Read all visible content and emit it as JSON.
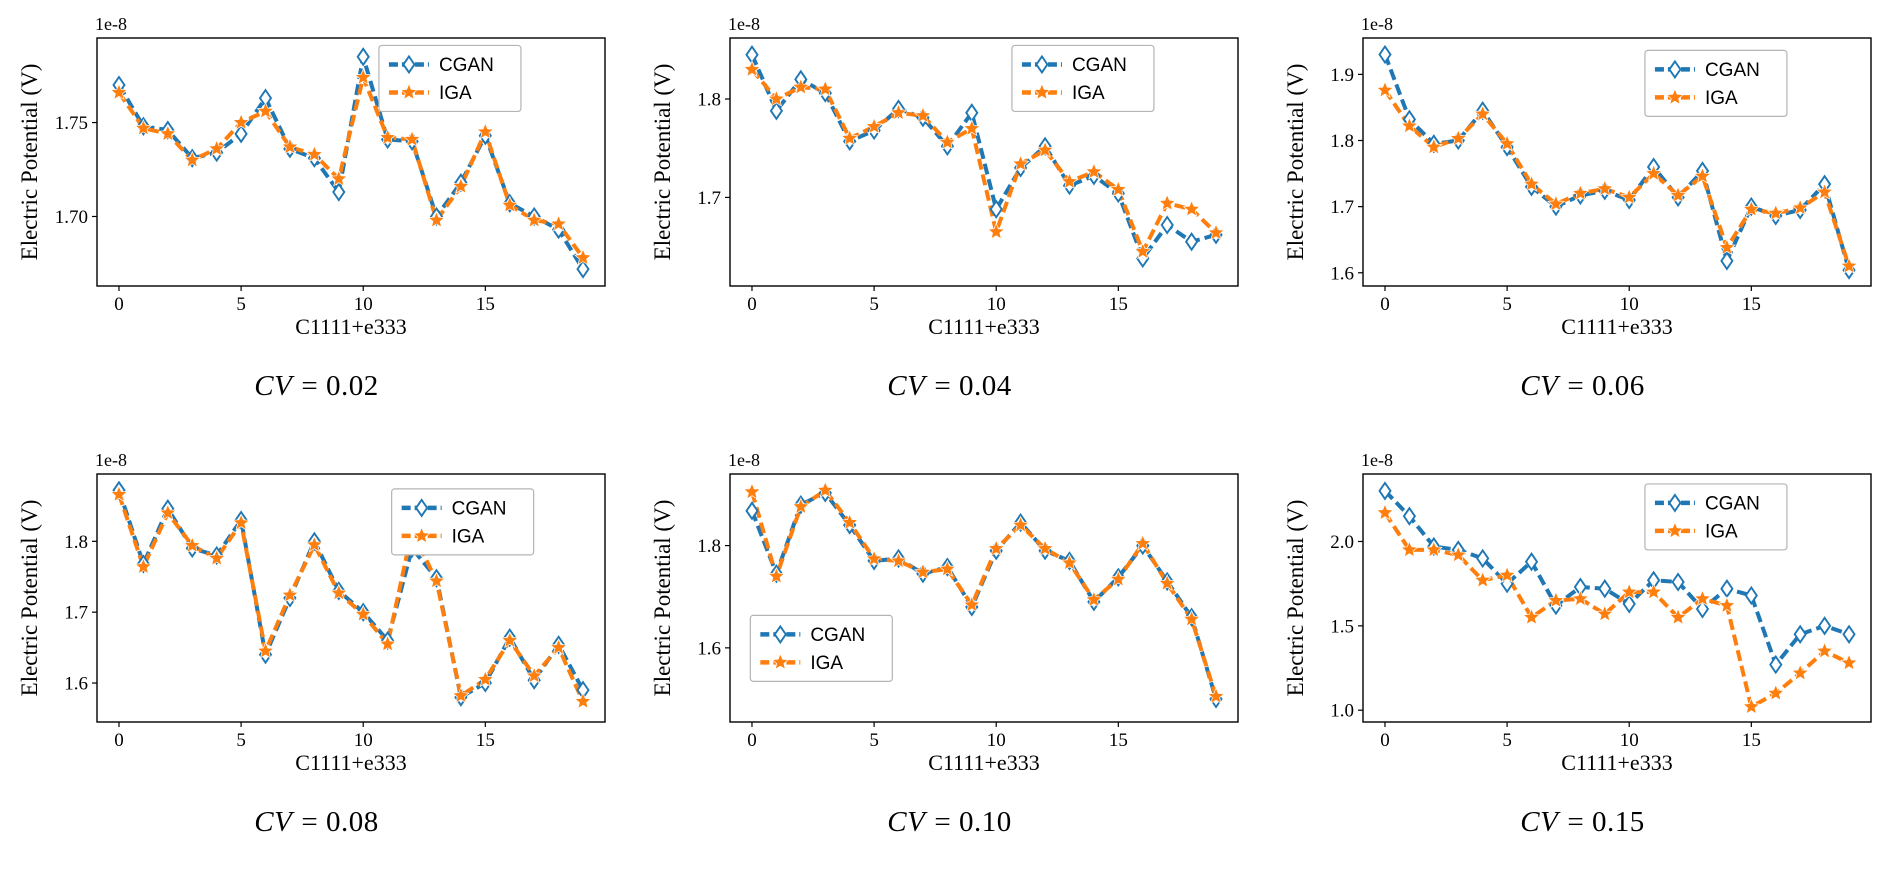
{
  "colors": {
    "cgan_blue": "#1f77b4",
    "iga_orange": "#ff7f0e"
  },
  "chart_data": [
    {
      "type": "line",
      "caption_var": "CV",
      "caption_eq": "= 0.02",
      "ylabel": "Electric Potential (V)",
      "xlabel": "C1111+e333",
      "offset_label": "1e-8",
      "xlim": [
        -0.9,
        19.9
      ],
      "ylim": [
        1.663,
        1.795
      ],
      "xticks": [
        {
          "value": 0,
          "label": "0"
        },
        {
          "value": 5,
          "label": "5"
        },
        {
          "value": 10,
          "label": "10"
        },
        {
          "value": 15,
          "label": "15"
        }
      ],
      "yticks": [
        {
          "value": 1.7,
          "label": "1.70"
        },
        {
          "value": 1.75,
          "label": "1.75"
        }
      ],
      "legend": {
        "x": 0.555,
        "y": 0.03,
        "entries": [
          "CGAN",
          "IGA"
        ]
      },
      "series": [
        {
          "name": "CGAN",
          "color": "#1f77b4",
          "marker": "diamond",
          "values": [
            1.77,
            1.748,
            1.746,
            1.731,
            1.734,
            1.744,
            1.763,
            1.736,
            1.731,
            1.713,
            1.785,
            1.741,
            1.74,
            1.7,
            1.718,
            1.743,
            1.707,
            1.7,
            1.693,
            1.672
          ]
        },
        {
          "name": "IGA",
          "color": "#ff7f0e",
          "marker": "star",
          "values": [
            1.766,
            1.747,
            1.744,
            1.73,
            1.736,
            1.75,
            1.756,
            1.737,
            1.733,
            1.72,
            1.774,
            1.742,
            1.741,
            1.698,
            1.716,
            1.745,
            1.706,
            1.698,
            1.696,
            1.678
          ]
        }
      ]
    },
    {
      "type": "line",
      "caption_var": "CV",
      "caption_eq": "= 0.04",
      "ylabel": "Electric Potential (V)",
      "xlabel": "C1111+e333",
      "offset_label": "1e-8",
      "xlim": [
        -0.9,
        19.9
      ],
      "ylim": [
        1.61,
        1.862
      ],
      "xticks": [
        {
          "value": 0,
          "label": "0"
        },
        {
          "value": 5,
          "label": "5"
        },
        {
          "value": 10,
          "label": "10"
        },
        {
          "value": 15,
          "label": "15"
        }
      ],
      "yticks": [
        {
          "value": 1.7,
          "label": "1.7"
        },
        {
          "value": 1.8,
          "label": "1.8"
        }
      ],
      "legend": {
        "x": 0.555,
        "y": 0.03,
        "entries": [
          "CGAN",
          "IGA"
        ]
      },
      "series": [
        {
          "name": "CGAN",
          "color": "#1f77b4",
          "marker": "diamond",
          "values": [
            1.845,
            1.788,
            1.82,
            1.806,
            1.757,
            1.768,
            1.79,
            1.781,
            1.752,
            1.786,
            1.688,
            1.73,
            1.752,
            1.712,
            1.722,
            1.704,
            1.638,
            1.672,
            1.655,
            1.662
          ]
        },
        {
          "name": "IGA",
          "color": "#ff7f0e",
          "marker": "star",
          "values": [
            1.83,
            1.8,
            1.812,
            1.81,
            1.76,
            1.772,
            1.786,
            1.783,
            1.756,
            1.77,
            1.665,
            1.734,
            1.748,
            1.716,
            1.726,
            1.708,
            1.645,
            1.694,
            1.688,
            1.664
          ]
        }
      ]
    },
    {
      "type": "line",
      "caption_var": "CV",
      "caption_eq": "= 0.06",
      "ylabel": "Electric Potential (V)",
      "xlabel": "C1111+e333",
      "offset_label": "1e-8",
      "xlim": [
        -0.9,
        19.9
      ],
      "ylim": [
        1.58,
        1.955
      ],
      "xticks": [
        {
          "value": 0,
          "label": "0"
        },
        {
          "value": 5,
          "label": "5"
        },
        {
          "value": 10,
          "label": "10"
        },
        {
          "value": 15,
          "label": "15"
        }
      ],
      "yticks": [
        {
          "value": 1.6,
          "label": "1.6"
        },
        {
          "value": 1.7,
          "label": "1.7"
        },
        {
          "value": 1.8,
          "label": "1.8"
        },
        {
          "value": 1.9,
          "label": "1.9"
        }
      ],
      "legend": {
        "x": 0.555,
        "y": 0.05,
        "entries": [
          "CGAN",
          "IGA"
        ]
      },
      "series": [
        {
          "name": "CGAN",
          "color": "#1f77b4",
          "marker": "diamond",
          "values": [
            1.93,
            1.832,
            1.795,
            1.8,
            1.845,
            1.79,
            1.73,
            1.7,
            1.717,
            1.724,
            1.71,
            1.76,
            1.714,
            1.754,
            1.618,
            1.7,
            1.686,
            1.695,
            1.734,
            1.604
          ]
        },
        {
          "name": "IGA",
          "color": "#ff7f0e",
          "marker": "star",
          "values": [
            1.876,
            1.822,
            1.79,
            1.803,
            1.84,
            1.795,
            1.734,
            1.704,
            1.72,
            1.727,
            1.714,
            1.75,
            1.717,
            1.746,
            1.638,
            1.696,
            1.69,
            1.698,
            1.722,
            1.61
          ]
        }
      ]
    },
    {
      "type": "line",
      "caption_var": "CV",
      "caption_eq": "= 0.08",
      "ylabel": "Electric Potential (V)",
      "xlabel": "C1111+e333",
      "offset_label": "1e-8",
      "xlim": [
        -0.9,
        19.9
      ],
      "ylim": [
        1.545,
        1.895
      ],
      "xticks": [
        {
          "value": 0,
          "label": "0"
        },
        {
          "value": 5,
          "label": "5"
        },
        {
          "value": 10,
          "label": "10"
        },
        {
          "value": 15,
          "label": "15"
        }
      ],
      "yticks": [
        {
          "value": 1.6,
          "label": "1.6"
        },
        {
          "value": 1.7,
          "label": "1.7"
        },
        {
          "value": 1.8,
          "label": "1.8"
        }
      ],
      "legend": {
        "x": 0.58,
        "y": 0.06,
        "entries": [
          "CGAN",
          "IGA"
        ]
      },
      "series": [
        {
          "name": "CGAN",
          "color": "#1f77b4",
          "marker": "diamond",
          "values": [
            1.872,
            1.768,
            1.846,
            1.79,
            1.78,
            1.83,
            1.64,
            1.72,
            1.8,
            1.73,
            1.7,
            1.66,
            1.79,
            1.748,
            1.58,
            1.6,
            1.664,
            1.604,
            1.654,
            1.59
          ]
        },
        {
          "name": "IGA",
          "color": "#ff7f0e",
          "marker": "star",
          "values": [
            1.866,
            1.764,
            1.84,
            1.794,
            1.776,
            1.826,
            1.645,
            1.724,
            1.795,
            1.727,
            1.697,
            1.655,
            1.815,
            1.744,
            1.582,
            1.605,
            1.66,
            1.61,
            1.65,
            1.574
          ]
        }
      ]
    },
    {
      "type": "line",
      "caption_var": "CV",
      "caption_eq": "= 0.10",
      "ylabel": "Electric Potential (V)",
      "xlabel": "C1111+e333",
      "offset_label": "1e-8",
      "xlim": [
        -0.9,
        19.9
      ],
      "ylim": [
        1.455,
        1.94
      ],
      "xticks": [
        {
          "value": 0,
          "label": "0"
        },
        {
          "value": 5,
          "label": "5"
        },
        {
          "value": 10,
          "label": "10"
        },
        {
          "value": 15,
          "label": "15"
        }
      ],
      "yticks": [
        {
          "value": 1.6,
          "label": "1.6"
        },
        {
          "value": 1.8,
          "label": "1.8"
        }
      ],
      "legend": {
        "x": 0.04,
        "y": 0.57,
        "entries": [
          "CGAN",
          "IGA"
        ]
      },
      "series": [
        {
          "name": "CGAN",
          "color": "#1f77b4",
          "marker": "diamond",
          "values": [
            1.868,
            1.745,
            1.88,
            1.903,
            1.84,
            1.77,
            1.775,
            1.745,
            1.758,
            1.68,
            1.79,
            1.845,
            1.79,
            1.77,
            1.69,
            1.738,
            1.8,
            1.73,
            1.66,
            1.5
          ]
        },
        {
          "name": "IGA",
          "color": "#ff7f0e",
          "marker": "star",
          "values": [
            1.905,
            1.74,
            1.876,
            1.908,
            1.845,
            1.774,
            1.77,
            1.748,
            1.754,
            1.684,
            1.794,
            1.84,
            1.794,
            1.766,
            1.694,
            1.734,
            1.804,
            1.726,
            1.656,
            1.505
          ]
        }
      ]
    },
    {
      "type": "line",
      "caption_var": "CV",
      "caption_eq": "= 0.15",
      "ylabel": "Electric Potential (V)",
      "xlabel": "C1111+e333",
      "offset_label": "1e-8",
      "xlim": [
        -0.9,
        19.9
      ],
      "ylim": [
        0.93,
        2.4
      ],
      "xticks": [
        {
          "value": 0,
          "label": "0"
        },
        {
          "value": 5,
          "label": "5"
        },
        {
          "value": 10,
          "label": "10"
        },
        {
          "value": 15,
          "label": "15"
        }
      ],
      "yticks": [
        {
          "value": 1.0,
          "label": "1.0"
        },
        {
          "value": 1.5,
          "label": "1.5"
        },
        {
          "value": 2.0,
          "label": "2.0"
        }
      ],
      "legend": {
        "x": 0.555,
        "y": 0.04,
        "entries": [
          "CGAN",
          "IGA"
        ]
      },
      "series": [
        {
          "name": "CGAN",
          "color": "#1f77b4",
          "marker": "diamond",
          "values": [
            2.3,
            2.15,
            1.97,
            1.95,
            1.9,
            1.75,
            1.88,
            1.62,
            1.73,
            1.72,
            1.63,
            1.77,
            1.76,
            1.6,
            1.72,
            1.68,
            1.27,
            1.45,
            1.5,
            1.45
          ]
        },
        {
          "name": "IGA",
          "color": "#ff7f0e",
          "marker": "star",
          "values": [
            2.17,
            1.95,
            1.95,
            1.92,
            1.77,
            1.8,
            1.55,
            1.65,
            1.66,
            1.57,
            1.7,
            1.7,
            1.55,
            1.66,
            1.62,
            1.02,
            1.1,
            1.22,
            1.35,
            1.28
          ]
        }
      ]
    }
  ]
}
